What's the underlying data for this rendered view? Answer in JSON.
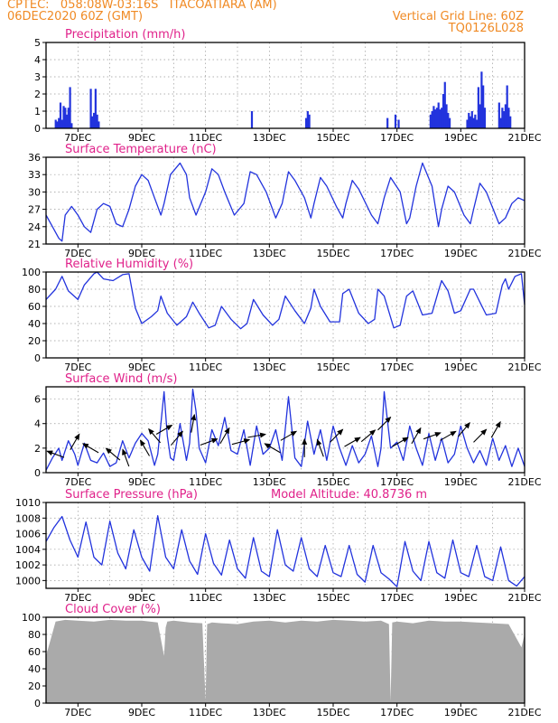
{
  "header": {
    "line1_left": "CPTEC:   058:08W-03:16S   ITACOATIARA (AM)",
    "line2_left": "06DEC2020 60Z (GMT)",
    "line1_right": "Vertical Grid Line: 60Z",
    "line2_right": "TQ0126L028"
  },
  "colors": {
    "title": "#e0218a",
    "series": "#2233dd",
    "cloud": "#aaaaaa",
    "header": "#f08a24"
  },
  "x_axis": {
    "tick_labels": [
      "7DEC",
      "9DEC",
      "11DEC",
      "13DEC",
      "15DEC",
      "17DEC",
      "19DEC",
      "21DEC"
    ],
    "tick_days": [
      7,
      9,
      11,
      13,
      15,
      17,
      19,
      21
    ],
    "range_days": [
      6.0,
      21.0
    ],
    "grid_every_days": 1
  },
  "chart_data": [
    {
      "id": "precip",
      "type": "bar",
      "title": "Precipitation (mm/h)",
      "ylim": [
        0,
        5
      ],
      "yticks": [
        0,
        1,
        2,
        3,
        4,
        5
      ],
      "x_days": [
        6.3,
        6.35,
        6.4,
        6.45,
        6.5,
        6.55,
        6.6,
        6.65,
        6.7,
        6.75,
        6.8,
        7.4,
        7.45,
        7.5,
        7.55,
        7.6,
        7.65,
        12.45,
        14.15,
        14.2,
        14.25,
        16.7,
        16.95,
        17.05,
        18.05,
        18.1,
        18.15,
        18.2,
        18.25,
        18.3,
        18.35,
        18.4,
        18.45,
        18.5,
        18.55,
        18.6,
        18.65,
        19.2,
        19.25,
        19.3,
        19.35,
        19.4,
        19.45,
        19.5,
        19.55,
        19.6,
        19.65,
        19.7,
        19.75,
        20.2,
        20.25,
        20.3,
        20.35,
        20.4,
        20.45,
        20.5,
        20.55
      ],
      "values": [
        0.5,
        0.4,
        0.6,
        1.5,
        0.5,
        1.3,
        1.2,
        0.8,
        1.2,
        2.4,
        0.3,
        2.3,
        0.7,
        0.9,
        2.3,
        0.8,
        0.4,
        1.0,
        0.6,
        1.0,
        0.8,
        0.6,
        0.8,
        0.5,
        0.8,
        1.0,
        1.3,
        1.1,
        1.2,
        1.5,
        1.1,
        1.2,
        2.0,
        2.7,
        1.4,
        0.9,
        0.6,
        0.5,
        0.9,
        0.7,
        1.0,
        0.6,
        0.8,
        0.5,
        2.4,
        1.4,
        3.3,
        2.5,
        1.2,
        1.5,
        0.6,
        1.2,
        1.0,
        1.4,
        2.5,
        1.2,
        0.7
      ]
    },
    {
      "id": "temp",
      "type": "line",
      "title": "Surface Temperature (nC)",
      "ylim": [
        21,
        36
      ],
      "yticks": [
        21,
        24,
        27,
        30,
        33,
        36
      ],
      "x_days": [
        6.0,
        6.2,
        6.4,
        6.5,
        6.6,
        6.8,
        7.0,
        7.2,
        7.4,
        7.6,
        7.8,
        8.0,
        8.2,
        8.4,
        8.6,
        8.8,
        9.0,
        9.2,
        9.4,
        9.6,
        9.7,
        9.9,
        10.2,
        10.4,
        10.5,
        10.7,
        11.0,
        11.2,
        11.4,
        11.6,
        11.9,
        12.2,
        12.4,
        12.6,
        12.9,
        13.2,
        13.4,
        13.6,
        13.8,
        14.1,
        14.3,
        14.4,
        14.6,
        14.8,
        15.1,
        15.3,
        15.4,
        15.6,
        15.8,
        16.2,
        16.4,
        16.6,
        16.8,
        17.1,
        17.3,
        17.4,
        17.6,
        17.8,
        18.1,
        18.3,
        18.4,
        18.6,
        18.8,
        19.1,
        19.3,
        19.4,
        19.6,
        19.8,
        20.2,
        20.4,
        20.6,
        20.8,
        21.0
      ],
      "values": [
        26,
        24,
        22,
        21.5,
        26,
        27.5,
        26,
        24,
        23,
        27,
        28,
        27.5,
        24.5,
        24,
        27,
        31,
        33,
        32,
        29,
        26,
        28,
        33,
        35,
        33,
        29,
        26,
        30,
        34,
        33,
        30,
        26,
        28,
        33.5,
        33,
        30,
        25.5,
        28,
        33.5,
        32,
        29,
        25.5,
        28,
        32.5,
        31,
        27.5,
        25.5,
        28,
        32,
        30.5,
        26,
        24.5,
        29,
        32.5,
        30,
        24.5,
        25.5,
        31,
        35,
        31,
        24,
        27,
        31,
        30,
        26,
        24.5,
        27,
        31.5,
        30,
        24.5,
        25.5,
        28,
        29,
        28.5
      ]
    },
    {
      "id": "rh",
      "type": "line",
      "title": "Relative Humidity (%)",
      "ylim": [
        0,
        100
      ],
      "yticks": [
        0,
        20,
        40,
        60,
        80,
        100
      ],
      "x_days": [
        6.0,
        6.3,
        6.5,
        6.7,
        7.0,
        7.2,
        7.5,
        7.6,
        7.8,
        8.1,
        8.4,
        8.6,
        8.8,
        9.0,
        9.3,
        9.5,
        9.6,
        9.8,
        10.1,
        10.4,
        10.6,
        10.8,
        11.1,
        11.3,
        11.5,
        11.8,
        12.1,
        12.3,
        12.5,
        12.8,
        13.1,
        13.3,
        13.5,
        13.8,
        14.1,
        14.3,
        14.4,
        14.6,
        14.9,
        15.2,
        15.3,
        15.5,
        15.8,
        16.1,
        16.3,
        16.4,
        16.6,
        16.9,
        17.1,
        17.3,
        17.5,
        17.8,
        18.1,
        18.3,
        18.4,
        18.6,
        18.8,
        19.0,
        19.3,
        19.4,
        19.6,
        19.8,
        20.1,
        20.3,
        20.4,
        20.5,
        20.7,
        20.9,
        21.0
      ],
      "values": [
        68,
        80,
        95,
        78,
        68,
        85,
        98,
        100,
        92,
        90,
        97,
        98,
        58,
        40,
        48,
        55,
        72,
        52,
        38,
        48,
        65,
        52,
        35,
        38,
        60,
        45,
        34,
        40,
        68,
        50,
        38,
        45,
        72,
        55,
        40,
        58,
        80,
        60,
        42,
        42,
        75,
        80,
        52,
        40,
        45,
        80,
        72,
        35,
        38,
        72,
        78,
        50,
        52,
        78,
        90,
        78,
        52,
        55,
        80,
        80,
        65,
        50,
        52,
        85,
        92,
        80,
        95,
        98,
        62
      ]
    },
    {
      "id": "wind",
      "type": "line",
      "title": "Surface Wind (m/s)",
      "ylim": [
        0,
        7
      ],
      "yticks": [
        0,
        2,
        4,
        6
      ],
      "x_days": [
        6.0,
        6.2,
        6.4,
        6.5,
        6.7,
        6.9,
        7.0,
        7.2,
        7.4,
        7.6,
        7.8,
        8.0,
        8.2,
        8.4,
        8.6,
        8.8,
        9.0,
        9.2,
        9.4,
        9.5,
        9.6,
        9.7,
        9.8,
        9.9,
        10.0,
        10.2,
        10.4,
        10.5,
        10.6,
        10.7,
        10.8,
        11.0,
        11.2,
        11.4,
        11.6,
        11.8,
        12.0,
        12.2,
        12.4,
        12.6,
        12.8,
        13.0,
        13.2,
        13.4,
        13.6,
        13.8,
        14.0,
        14.2,
        14.4,
        14.6,
        14.8,
        15.0,
        15.2,
        15.4,
        15.6,
        15.8,
        16.0,
        16.2,
        16.4,
        16.5,
        16.6,
        16.8,
        17.0,
        17.2,
        17.4,
        17.6,
        17.8,
        18.0,
        18.2,
        18.4,
        18.6,
        18.8,
        19.0,
        19.2,
        19.4,
        19.6,
        19.8,
        20.0,
        20.2,
        20.4,
        20.6,
        20.8,
        21.0
      ],
      "values": [
        0.2,
        1.2,
        2.0,
        1.0,
        2.6,
        1.5,
        0.6,
        2.4,
        1.0,
        0.8,
        1.6,
        0.5,
        0.8,
        2.6,
        1.2,
        2.4,
        3.2,
        2.6,
        0.6,
        1.5,
        4.0,
        6.6,
        3.0,
        1.2,
        1.0,
        4.0,
        1.0,
        2.4,
        6.8,
        5.0,
        2.0,
        0.8,
        3.5,
        2.2,
        4.5,
        1.8,
        1.5,
        3.5,
        0.6,
        3.8,
        1.5,
        2.0,
        3.5,
        1.0,
        6.2,
        1.2,
        0.5,
        4.2,
        1.5,
        3.5,
        1.0,
        3.8,
        2.0,
        0.6,
        2.2,
        0.8,
        1.5,
        3.0,
        0.5,
        2.0,
        6.6,
        2.0,
        2.5,
        1.0,
        3.8,
        2.0,
        0.6,
        3.2,
        1.0,
        2.8,
        0.8,
        1.5,
        3.8,
        2.0,
        0.8,
        1.8,
        0.6,
        2.8,
        1.0,
        2.2,
        0.5,
        2.0,
        0.5
      ],
      "arrow_days": [
        6.3,
        6.9,
        7.4,
        8.1,
        8.5,
        9.1,
        9.4,
        9.7,
        10.1,
        10.6,
        11.1,
        11.6,
        12.1,
        12.6,
        13.1,
        13.6,
        14.1,
        14.6,
        15.1,
        15.6,
        16.1,
        16.6,
        17.1,
        17.6,
        18.1,
        18.6,
        19.1,
        19.6,
        20.1
      ],
      "arrow_dirs_deg": [
        160,
        60,
        150,
        140,
        110,
        120,
        130,
        30,
        50,
        80,
        20,
        60,
        15,
        10,
        150,
        30,
        90,
        110,
        45,
        30,
        40,
        45,
        30,
        60,
        20,
        30,
        50,
        45,
        60
      ],
      "arrow_speeds": [
        1.5,
        2.5,
        2.0,
        1.5,
        1.2,
        2.0,
        3.0,
        3.5,
        2.8,
        4.0,
        2.5,
        3.0,
        2.5,
        3.0,
        2.0,
        3.0,
        2.0,
        2.0,
        3.0,
        2.5,
        3.0,
        4.0,
        2.5,
        3.0,
        3.0,
        3.0,
        3.5,
        3.0,
        3.5
      ]
    },
    {
      "id": "pressure",
      "type": "line",
      "title": "Surface Pressure (hPa)",
      "annotation": "Model Altitude: 40.8736 m",
      "ylim": [
        999,
        1010
      ],
      "yticks": [
        1000,
        1002,
        1004,
        1006,
        1008,
        1010
      ],
      "x_days": [
        6.0,
        6.25,
        6.5,
        6.75,
        7.0,
        7.25,
        7.5,
        7.75,
        8.0,
        8.25,
        8.5,
        8.75,
        9.0,
        9.25,
        9.5,
        9.75,
        10.0,
        10.25,
        10.5,
        10.75,
        11.0,
        11.25,
        11.5,
        11.75,
        12.0,
        12.25,
        12.5,
        12.75,
        13.0,
        13.25,
        13.5,
        13.75,
        14.0,
        14.25,
        14.5,
        14.75,
        15.0,
        15.25,
        15.5,
        15.75,
        16.0,
        16.25,
        16.5,
        16.75,
        17.0,
        17.25,
        17.5,
        17.75,
        18.0,
        18.25,
        18.5,
        18.75,
        19.0,
        19.25,
        19.5,
        19.75,
        20.0,
        20.25,
        20.5,
        20.75,
        21.0
      ],
      "values": [
        1005,
        1006.8,
        1008.2,
        1005.2,
        1003,
        1007.5,
        1003,
        1002,
        1007.6,
        1003.5,
        1001.5,
        1006.5,
        1003,
        1001.2,
        1008.3,
        1003,
        1001.5,
        1006.5,
        1002.5,
        1000.8,
        1006,
        1002.2,
        1000.7,
        1005.2,
        1001.5,
        1000.3,
        1005.5,
        1001.2,
        1000.5,
        1006.5,
        1002,
        1001.2,
        1005.5,
        1001.5,
        1000.5,
        1004.5,
        1001,
        1000.5,
        1004.5,
        1000.8,
        999.8,
        1004.5,
        1001,
        1000.2,
        999.2,
        1005,
        1001.2,
        1000,
        1005,
        1001,
        1000.3,
        1005.2,
        1001,
        1000.5,
        1004.5,
        1000.5,
        1000,
        1004.3,
        1000,
        999.3,
        1000.5
      ]
    },
    {
      "id": "cloud",
      "type": "area",
      "title": "Cloud Cover (%)",
      "ylim": [
        0,
        100
      ],
      "yticks": [
        0,
        20,
        40,
        60,
        80,
        100
      ],
      "x_days": [
        6.0,
        6.3,
        6.6,
        7.0,
        7.5,
        8.0,
        8.5,
        9.0,
        9.5,
        9.7,
        9.75,
        9.8,
        10.0,
        10.5,
        10.9,
        11.0,
        11.05,
        11.2,
        11.5,
        12.0,
        12.5,
        13.0,
        13.5,
        14.0,
        14.5,
        15.0,
        15.5,
        16.0,
        16.5,
        16.75,
        16.8,
        16.85,
        17.0,
        17.5,
        18.0,
        18.5,
        19.0,
        19.5,
        20.0,
        20.5,
        20.9,
        21.0
      ],
      "values": [
        55,
        95,
        97,
        96,
        95,
        97,
        96,
        96,
        94,
        55,
        88,
        95,
        96,
        94,
        93,
        2,
        92,
        94,
        93,
        92,
        95,
        96,
        94,
        96,
        95,
        97,
        96,
        95,
        96,
        92,
        2,
        94,
        95,
        93,
        96,
        95,
        95,
        94,
        93,
        92,
        65,
        80
      ]
    }
  ]
}
